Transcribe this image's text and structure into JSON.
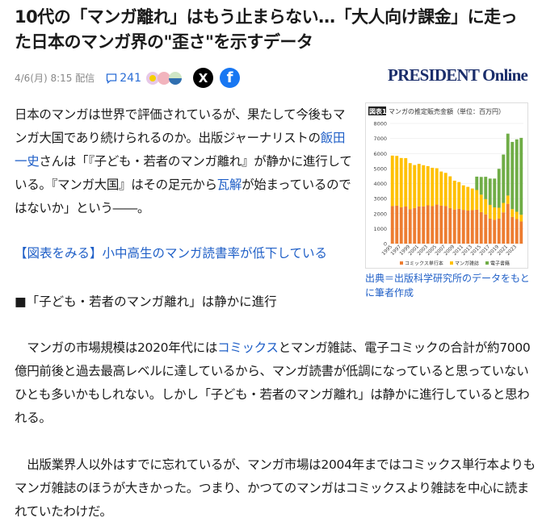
{
  "article": {
    "title": "10代の「マンガ離れ」はもう止まらない…「大人向け課金」に走った日本のマンガ界の\"歪さ\"を示すデータ",
    "date": "4/6(月) 8:15 配信",
    "comments": "241",
    "publisher": "PRESIDENT Online",
    "social": {
      "x": "X",
      "facebook": "f"
    },
    "lead": [
      "日本のマンガは世界で評価されているが、果たして今後もマンガ大国であり続けられるのか。出版ジャーナリストの",
      {
        "link": "飯田一史"
      },
      "さんは「『子ども・若者のマンガ離れ』が静かに進行している。『マンガ大国』はその足元から",
      {
        "link": "瓦解"
      },
      "が始まっているのではないか」という――。"
    ],
    "figure_link": "【図表をみる】小中高生のマンガ読書率が低下している",
    "subheading": "■「子ども・若者のマンガ離れ」は静かに進行",
    "para1": [
      "　マンガの市場規模は2020年代には",
      {
        "link": "コミックス"
      },
      "とマンガ雑誌、電子コミックの合計が約7000億円前後と過去最高レベルに達しているから、マンガ読書が低調になっていると思っていないひとも多いかもしれない。しかし「子ども・若者のマンガ離れ」は静かに進行していると思われる。"
    ],
    "para2": "　出版業界人以外はすでに忘れているが、マンガ市場は2004年まではコミックス単行本よりもマンガ雑誌のほうが大きかった。つまり、かつてのマンガはコミックスより雑誌を中心に読まれていたわけだ。",
    "caption": "出典＝出版科学研究所のデータをもとに筆者作成"
  },
  "chart_data": {
    "type": "bar",
    "stacked": true,
    "title": "マンガの推定販売金額（単位：百万円）",
    "badge": "図表1",
    "ylim": [
      0,
      8000
    ],
    "yticks": [
      0,
      1000,
      2000,
      3000,
      4000,
      5000,
      6000,
      7000,
      8000
    ],
    "grid": true,
    "legend": "bottom",
    "categories": [
      1995,
      1996,
      1997,
      1998,
      1999,
      2000,
      2001,
      2002,
      2003,
      2004,
      2005,
      2006,
      2007,
      2008,
      2009,
      2010,
      2011,
      2012,
      2013,
      2014,
      2015,
      2016,
      2017,
      2018,
      2019,
      2020,
      2021,
      2022,
      2023,
      2024
    ],
    "xticklabels": [
      "1995",
      "1997",
      "1999",
      "2001",
      "2003",
      "2005",
      "2007",
      "2009",
      "2011",
      "2013",
      "2015",
      "2017",
      "2019",
      "2021",
      "2023"
    ],
    "series": [
      {
        "name": "コミックス単行本",
        "color": "#ed7d31",
        "values": [
          2500,
          2530,
          2420,
          2470,
          2300,
          2370,
          2480,
          2480,
          2550,
          2500,
          2600,
          2530,
          2500,
          2370,
          2270,
          2320,
          2250,
          2200,
          2230,
          2260,
          2100,
          1950,
          1670,
          1590,
          1670,
          2080,
          2650,
          1780,
          1640,
          1480
        ]
      },
      {
        "name": "マンガ雑誌",
        "color": "#ffc000",
        "values": [
          3360,
          3310,
          3280,
          3220,
          3060,
          2860,
          2830,
          2740,
          2610,
          2550,
          2420,
          2270,
          2210,
          2110,
          1920,
          1780,
          1630,
          1580,
          1440,
          1310,
          1160,
          1010,
          910,
          820,
          720,
          630,
          550,
          520,
          480,
          440
        ]
      },
      {
        "name": "電子書籍",
        "color": "#70ad47",
        "values": [
          0,
          0,
          0,
          0,
          0,
          0,
          0,
          0,
          0,
          0,
          0,
          0,
          0,
          0,
          0,
          0,
          0,
          0,
          0,
          890,
          1180,
          1490,
          1750,
          1920,
          2590,
          3220,
          4120,
          4470,
          4820,
          5120
        ]
      }
    ]
  }
}
